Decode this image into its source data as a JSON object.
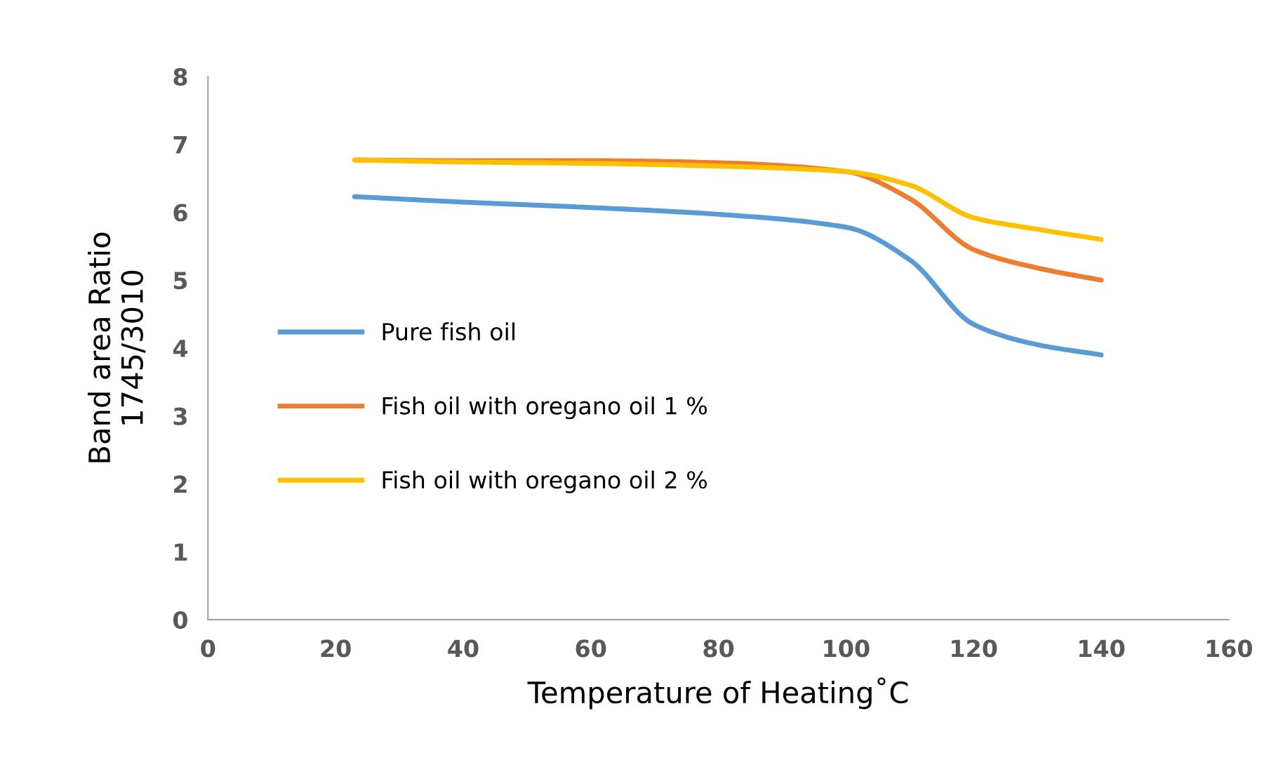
{
  "chart_data": {
    "type": "line",
    "xlabel": "Temperature of Heating˚C",
    "ylabel": "Band area Ratio\n1745/3010",
    "xlim": [
      0,
      160
    ],
    "xticks": [
      0,
      20,
      40,
      60,
      80,
      100,
      120,
      140,
      160
    ],
    "ylim": [
      0,
      8
    ],
    "yticks": [
      0,
      1,
      2,
      3,
      4,
      5,
      6,
      7,
      8
    ],
    "grid": false,
    "legend": "left",
    "marker": "none",
    "line_style": "solid",
    "series": [
      {
        "name": "Pure fish oil",
        "color": "#5b9bd5",
        "x": [
          23,
          40,
          60,
          80,
          100,
          110,
          120,
          130,
          140
        ],
        "values": [
          6.23,
          6.15,
          6.07,
          5.97,
          5.78,
          5.3,
          4.35,
          4.05,
          3.9
        ]
      },
      {
        "name": "Fish oil with oregano oil 1 %",
        "color": "#ed7d31",
        "x": [
          23,
          40,
          60,
          80,
          100,
          110,
          120,
          130,
          140
        ],
        "values": [
          6.77,
          6.76,
          6.76,
          6.73,
          6.6,
          6.2,
          5.45,
          5.18,
          5.0
        ]
      },
      {
        "name": "Fish oil with oregano oil 2 %",
        "color": "#ffc000",
        "x": [
          23,
          40,
          60,
          80,
          100,
          110,
          120,
          130,
          140
        ],
        "values": [
          6.77,
          6.74,
          6.72,
          6.68,
          6.6,
          6.4,
          5.92,
          5.75,
          5.6
        ]
      }
    ]
  }
}
